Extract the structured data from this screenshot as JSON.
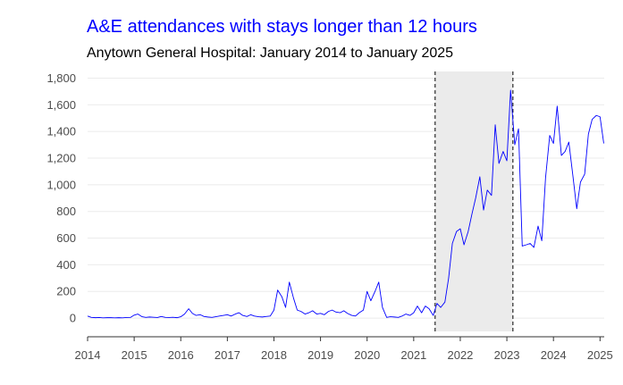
{
  "chart_data": {
    "type": "line",
    "title": "A&E attendances with stays longer than 12 hours",
    "subtitle": "Anytown General Hospital: January 2014 to January 2025",
    "xlabel": "",
    "ylabel": "",
    "ylim": [
      -100,
      1850
    ],
    "xlim": [
      2014,
      2025.09
    ],
    "y_ticks": [
      0,
      200,
      400,
      600,
      800,
      1000,
      1200,
      1400,
      1600,
      1800
    ],
    "y_tick_labels": [
      "0",
      "200",
      "400",
      "600",
      "800",
      "1,000",
      "1,200",
      "1,400",
      "1,600",
      "1,800"
    ],
    "x_ticks": [
      2014,
      2015,
      2016,
      2017,
      2018,
      2019,
      2020,
      2021,
      2022,
      2023,
      2024,
      2025
    ],
    "x_tick_labels": [
      "2014",
      "2015",
      "2016",
      "2017",
      "2018",
      "2019",
      "2020",
      "2021",
      "2022",
      "2023",
      "2024",
      "2025"
    ],
    "grid": "horizontal",
    "shaded_period": {
      "start": 2021.46,
      "end": 2023.13
    },
    "colors": {
      "title": "#0000ff",
      "line": "#0000ff",
      "shade": "#ebebeb",
      "grid": "#ebebeb"
    },
    "series": [
      {
        "points": [
          [
            2014.0,
            15
          ],
          [
            2014.08,
            5
          ],
          [
            2014.17,
            3
          ],
          [
            2014.25,
            4
          ],
          [
            2014.33,
            2
          ],
          [
            2014.42,
            3
          ],
          [
            2014.5,
            3
          ],
          [
            2014.58,
            2
          ],
          [
            2014.67,
            3
          ],
          [
            2014.75,
            2
          ],
          [
            2014.83,
            4
          ],
          [
            2014.92,
            5
          ],
          [
            2015.0,
            22
          ],
          [
            2015.08,
            30
          ],
          [
            2015.17,
            10
          ],
          [
            2015.25,
            5
          ],
          [
            2015.33,
            8
          ],
          [
            2015.42,
            6
          ],
          [
            2015.5,
            4
          ],
          [
            2015.58,
            12
          ],
          [
            2015.67,
            5
          ],
          [
            2015.75,
            4
          ],
          [
            2015.83,
            6
          ],
          [
            2015.92,
            3
          ],
          [
            2016.0,
            10
          ],
          [
            2016.08,
            30
          ],
          [
            2016.17,
            70
          ],
          [
            2016.25,
            35
          ],
          [
            2016.33,
            20
          ],
          [
            2016.42,
            25
          ],
          [
            2016.5,
            12
          ],
          [
            2016.58,
            8
          ],
          [
            2016.67,
            5
          ],
          [
            2016.75,
            10
          ],
          [
            2016.83,
            15
          ],
          [
            2016.92,
            20
          ],
          [
            2017.0,
            25
          ],
          [
            2017.08,
            15
          ],
          [
            2017.17,
            30
          ],
          [
            2017.25,
            40
          ],
          [
            2017.33,
            20
          ],
          [
            2017.42,
            12
          ],
          [
            2017.5,
            25
          ],
          [
            2017.58,
            15
          ],
          [
            2017.67,
            10
          ],
          [
            2017.75,
            8
          ],
          [
            2017.83,
            12
          ],
          [
            2017.92,
            15
          ],
          [
            2018.0,
            60
          ],
          [
            2018.08,
            210
          ],
          [
            2018.17,
            160
          ],
          [
            2018.25,
            80
          ],
          [
            2018.33,
            270
          ],
          [
            2018.42,
            150
          ],
          [
            2018.5,
            60
          ],
          [
            2018.58,
            50
          ],
          [
            2018.67,
            30
          ],
          [
            2018.75,
            40
          ],
          [
            2018.83,
            55
          ],
          [
            2018.92,
            30
          ],
          [
            2019.0,
            35
          ],
          [
            2019.08,
            25
          ],
          [
            2019.17,
            50
          ],
          [
            2019.25,
            60
          ],
          [
            2019.33,
            45
          ],
          [
            2019.42,
            40
          ],
          [
            2019.5,
            55
          ],
          [
            2019.58,
            35
          ],
          [
            2019.67,
            20
          ],
          [
            2019.75,
            15
          ],
          [
            2019.83,
            40
          ],
          [
            2019.92,
            60
          ],
          [
            2020.0,
            200
          ],
          [
            2020.08,
            130
          ],
          [
            2020.17,
            200
          ],
          [
            2020.25,
            270
          ],
          [
            2020.33,
            80
          ],
          [
            2020.42,
            5
          ],
          [
            2020.5,
            10
          ],
          [
            2020.58,
            8
          ],
          [
            2020.67,
            5
          ],
          [
            2020.75,
            15
          ],
          [
            2020.83,
            30
          ],
          [
            2020.92,
            20
          ],
          [
            2021.0,
            40
          ],
          [
            2021.08,
            90
          ],
          [
            2021.17,
            40
          ],
          [
            2021.25,
            90
          ],
          [
            2021.33,
            70
          ],
          [
            2021.42,
            20
          ],
          [
            2021.5,
            110
          ],
          [
            2021.58,
            80
          ],
          [
            2021.67,
            120
          ],
          [
            2021.75,
            300
          ],
          [
            2021.83,
            560
          ],
          [
            2021.92,
            650
          ],
          [
            2022.0,
            670
          ],
          [
            2022.08,
            550
          ],
          [
            2022.17,
            650
          ],
          [
            2022.25,
            780
          ],
          [
            2022.33,
            900
          ],
          [
            2022.42,
            1060
          ],
          [
            2022.5,
            810
          ],
          [
            2022.58,
            960
          ],
          [
            2022.67,
            920
          ],
          [
            2022.75,
            1450
          ],
          [
            2022.83,
            1160
          ],
          [
            2022.92,
            1250
          ],
          [
            2023.0,
            1180
          ],
          [
            2023.08,
            1710
          ],
          [
            2023.17,
            1300
          ],
          [
            2023.25,
            1420
          ],
          [
            2023.33,
            540
          ],
          [
            2023.42,
            550
          ],
          [
            2023.5,
            560
          ],
          [
            2023.58,
            530
          ],
          [
            2023.67,
            690
          ],
          [
            2023.75,
            580
          ],
          [
            2023.83,
            1050
          ],
          [
            2023.92,
            1370
          ],
          [
            2024.0,
            1310
          ],
          [
            2024.08,
            1590
          ],
          [
            2024.17,
            1220
          ],
          [
            2024.25,
            1250
          ],
          [
            2024.33,
            1320
          ],
          [
            2024.42,
            1060
          ],
          [
            2024.5,
            820
          ],
          [
            2024.58,
            1020
          ],
          [
            2024.67,
            1080
          ],
          [
            2024.75,
            1380
          ],
          [
            2024.83,
            1490
          ],
          [
            2024.92,
            1520
          ],
          [
            2025.0,
            1510
          ],
          [
            2025.08,
            1310
          ]
        ]
      }
    ]
  }
}
